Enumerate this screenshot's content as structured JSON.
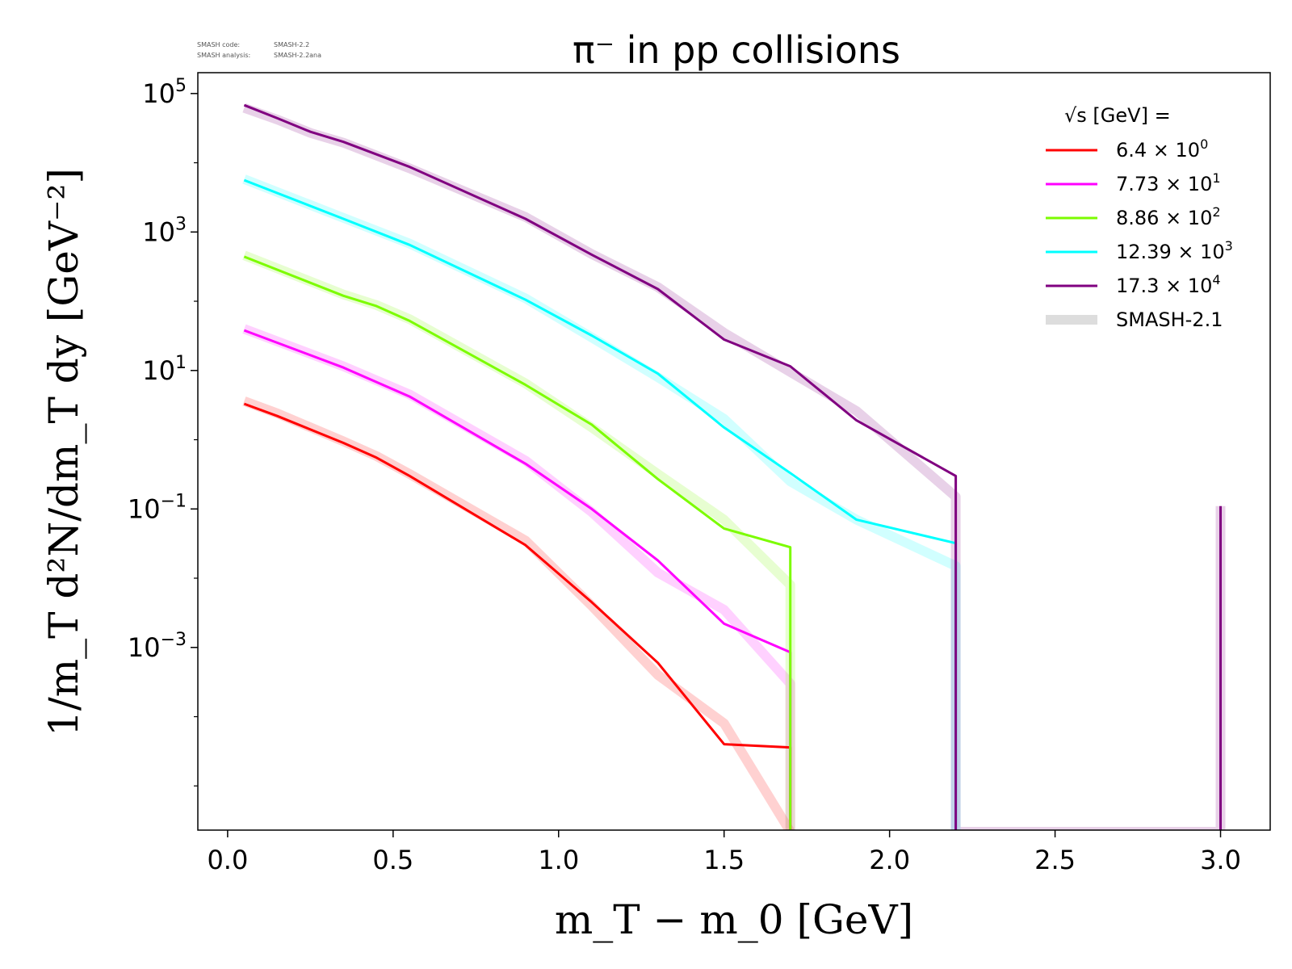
{
  "meta": {
    "line1_key": "SMASH code:",
    "line1_val": "SMASH-2.2",
    "line2_key": "SMASH analysis:",
    "line2_val": "SMASH-2.2ana"
  },
  "chart_data": {
    "type": "line",
    "title": "π⁻ in pp collisions",
    "xlabel": "m_T − m_0 [GeV]",
    "ylabel": "1/m_T d²N/dm_T dy [GeV⁻²]",
    "xlim": [
      -0.09,
      3.15
    ],
    "ylim": [
      2.3e-06,
      200000
    ],
    "y_scale": "log",
    "grid": false,
    "x_ticks": [
      {
        "v": 0.0,
        "label": "0.0"
      },
      {
        "v": 0.5,
        "label": "0.5"
      },
      {
        "v": 1.0,
        "label": "1.0"
      },
      {
        "v": 1.5,
        "label": "1.5"
      },
      {
        "v": 2.0,
        "label": "2.0"
      },
      {
        "v": 2.5,
        "label": "2.5"
      },
      {
        "v": 3.0,
        "label": "3.0"
      }
    ],
    "y_ticks": [
      {
        "v": 100000,
        "base": "10",
        "exp": "5"
      },
      {
        "v": 1000,
        "base": "10",
        "exp": "3"
      },
      {
        "v": 10,
        "base": "10",
        "exp": "1"
      },
      {
        "v": 0.1,
        "base": "10",
        "exp": "−1"
      },
      {
        "v": 0.001,
        "base": "10",
        "exp": "−3"
      }
    ],
    "legend": {
      "title": "√s  [GeV] =",
      "position": "top-right",
      "entries": [
        {
          "mantissa": "6.4",
          "times": "×",
          "base": "10",
          "exp": "0",
          "color": "#ff0000"
        },
        {
          "mantissa": "7.73",
          "times": "×",
          "base": "10",
          "exp": "1",
          "color": "#ff00ff"
        },
        {
          "mantissa": "8.86",
          "times": "×",
          "base": "10",
          "exp": "2",
          "color": "#7cfc00"
        },
        {
          "mantissa": "12.39",
          "times": "×",
          "base": "10",
          "exp": "3",
          "color": "#00ffff"
        },
        {
          "mantissa": "17.3",
          "times": "×",
          "base": "10",
          "exp": "4",
          "color": "#800080"
        }
      ],
      "reference_label": "SMASH-2.1",
      "reference_color": "#dddddd"
    },
    "series": [
      {
        "color": "#ff0000",
        "x": [
          0.05,
          0.15,
          0.35,
          0.45,
          0.55,
          0.9,
          1.1,
          1.3,
          1.5,
          1.7,
          1.7
        ],
        "y": [
          3.3,
          2.2,
          0.9,
          0.55,
          0.3,
          0.03,
          0.0045,
          0.0006,
          4e-05,
          3.6e-05,
          1.5e-06
        ],
        "reference_y": [
          3.6,
          2.4,
          0.95,
          0.58,
          0.32,
          0.035,
          0.004,
          0.0004,
          8e-05,
          1.5e-06,
          1.5e-06
        ]
      },
      {
        "color": "#ff00ff",
        "x": [
          0.05,
          0.35,
          0.55,
          0.9,
          1.1,
          1.3,
          1.5,
          1.7,
          1.7
        ],
        "y": [
          38,
          11,
          4.2,
          0.45,
          0.1,
          0.018,
          0.0022,
          0.00085,
          1.5e-06
        ],
        "reference_y": [
          40,
          11.5,
          4.5,
          0.5,
          0.09,
          0.012,
          0.0035,
          0.0003,
          1.5e-06
        ]
      },
      {
        "color": "#7cfc00",
        "x": [
          0.05,
          0.35,
          0.45,
          0.55,
          0.9,
          1.1,
          1.3,
          1.5,
          1.7,
          1.7
        ],
        "y": [
          440,
          120,
          85,
          52,
          6.2,
          1.65,
          0.27,
          0.052,
          0.028,
          1.5e-06
        ],
        "reference_y": [
          460,
          125,
          88,
          55,
          6.5,
          1.5,
          0.32,
          0.07,
          0.008,
          1.5e-06
        ]
      },
      {
        "color": "#00ffff",
        "x": [
          0.05,
          0.35,
          0.55,
          0.9,
          1.1,
          1.3,
          1.5,
          1.7,
          1.9,
          2.2,
          2.2
        ],
        "y": [
          5600,
          1550,
          650,
          105,
          32,
          9,
          1.5,
          0.33,
          0.07,
          0.032,
          1.5e-06
        ],
        "reference_y": [
          5800,
          1600,
          680,
          110,
          30,
          8,
          2,
          0.25,
          0.07,
          0.015,
          1.5e-06
        ]
      },
      {
        "color": "#800080",
        "x": [
          0.05,
          0.15,
          0.25,
          0.35,
          0.55,
          0.9,
          1.1,
          1.3,
          1.5,
          1.7,
          1.9,
          2.2,
          2.2,
          3.0,
          3.0
        ],
        "y": [
          68000,
          44000,
          28000,
          20000,
          8700,
          1550,
          470,
          150,
          28,
          11.5,
          1.9,
          0.3,
          1.5e-06,
          1.5e-06,
          0.11
        ],
        "reference_y": [
          62000,
          42000,
          27000,
          19500,
          8300,
          1650,
          480,
          160,
          35,
          9.5,
          2.6,
          0.15,
          1.5e-06,
          1.5e-06,
          0.11
        ]
      }
    ]
  }
}
